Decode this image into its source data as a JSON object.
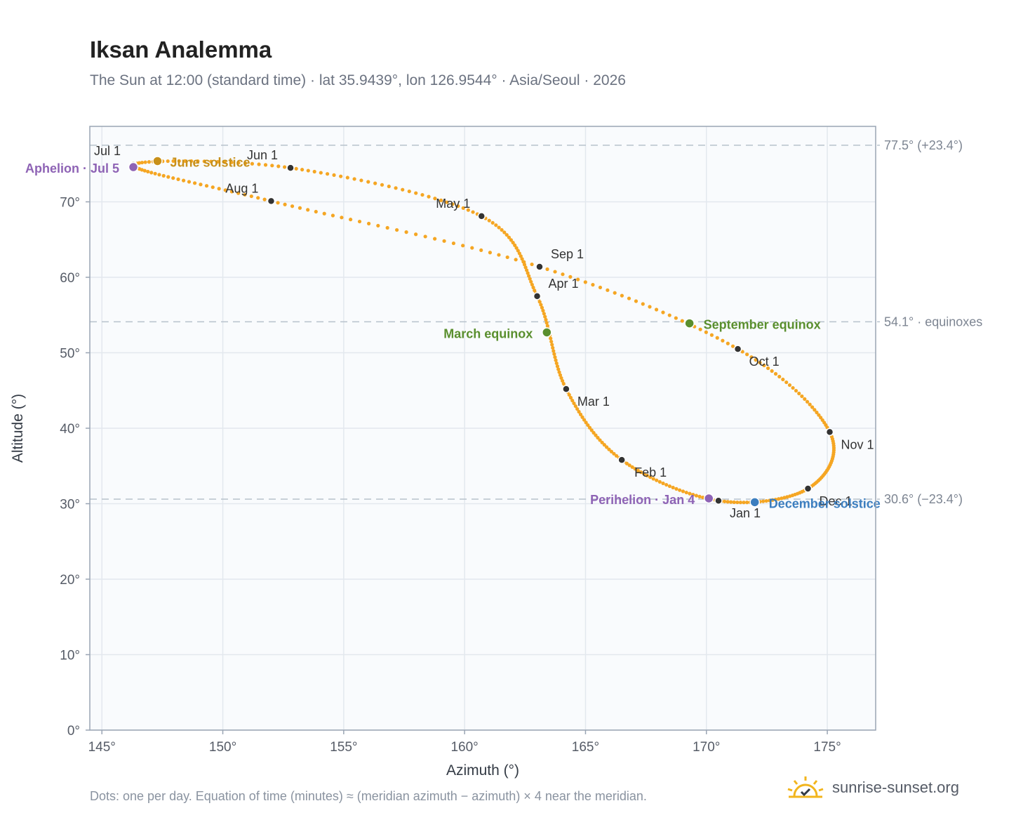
{
  "title": "Iksan Analemma",
  "subtitle": "The Sun at 12:00 (standard time) · lat 35.9439°, lon 126.9544° · Asia/Seoul · 2026",
  "footer_note": "Dots: one per day. Equation of time (minutes) ≈ (meridian azimuth − azimuth) × 4 near the meridian.",
  "brand": {
    "name": "sunrise-sunset.org",
    "icon": "sun-logo-icon"
  },
  "colors": {
    "path": "#f5a623",
    "month_dot": "#333333",
    "solstice_june": "#c8901a",
    "solstice_december": "#3c7ebf",
    "equinox": "#5a8f2e",
    "apsis": "#8e63b5",
    "grid": "#e3e8ee",
    "plot_bg": "#f9fbfd",
    "frame": "#9aa5b4",
    "reference": "#b8c2cc"
  },
  "chart_data": {
    "type": "scatter",
    "xlabel": "Azimuth (°)",
    "ylabel": "Altitude (°)",
    "xlim": [
      144.5,
      177
    ],
    "ylim": [
      0,
      80
    ],
    "x_ticks": [
      145,
      150,
      155,
      160,
      165,
      170,
      175
    ],
    "y_ticks": [
      0,
      10,
      20,
      30,
      40,
      50,
      60,
      70
    ],
    "x_tick_labels": [
      "145°",
      "150°",
      "155°",
      "160°",
      "165°",
      "170°",
      "175°"
    ],
    "y_tick_labels": [
      "0°",
      "10°",
      "20°",
      "30°",
      "40°",
      "50°",
      "60°",
      "70°"
    ],
    "grid": true,
    "reference_lines": [
      {
        "y": 77.5,
        "label": "77.5° (+23.4°)"
      },
      {
        "y": 54.1,
        "label": "54.1° · equinoxes"
      },
      {
        "y": 30.6,
        "label": "30.6° (−23.4°)"
      }
    ],
    "monthly_points": [
      {
        "label": "Jan 1",
        "x": 170.5,
        "y": 30.4
      },
      {
        "label": "Feb 1",
        "x": 166.5,
        "y": 35.8
      },
      {
        "label": "Mar 1",
        "x": 164.2,
        "y": 45.2
      },
      {
        "label": "Apr 1",
        "x": 163.0,
        "y": 57.5
      },
      {
        "label": "May 1",
        "x": 160.7,
        "y": 68.1
      },
      {
        "label": "Jun 1",
        "x": 152.8,
        "y": 74.5
      },
      {
        "label": "Jul 1",
        "x": 146.3,
        "y": 74.9
      },
      {
        "label": "Aug 1",
        "x": 152.0,
        "y": 70.1
      },
      {
        "label": "Sep 1",
        "x": 163.1,
        "y": 61.4
      },
      {
        "label": "Oct 1",
        "x": 171.3,
        "y": 50.5
      },
      {
        "label": "Nov 1",
        "x": 175.1,
        "y": 39.5
      },
      {
        "label": "Dec 1",
        "x": 174.2,
        "y": 32.0
      }
    ],
    "events": [
      {
        "label": "June solstice",
        "x": 147.3,
        "y": 75.4,
        "type": "solstice_june"
      },
      {
        "label": "December solstice",
        "x": 172.0,
        "y": 30.2,
        "type": "solstice_december"
      },
      {
        "label": "March equinox",
        "x": 163.4,
        "y": 52.7,
        "type": "equinox"
      },
      {
        "label": "September equinox",
        "x": 169.3,
        "y": 53.9,
        "type": "equinox"
      },
      {
        "label": "Perihelion · Jan 4",
        "x": 170.1,
        "y": 30.7,
        "type": "apsis"
      },
      {
        "label": "Aphelion · Jul 5",
        "x": 146.3,
        "y": 74.6,
        "type": "apsis"
      }
    ]
  }
}
